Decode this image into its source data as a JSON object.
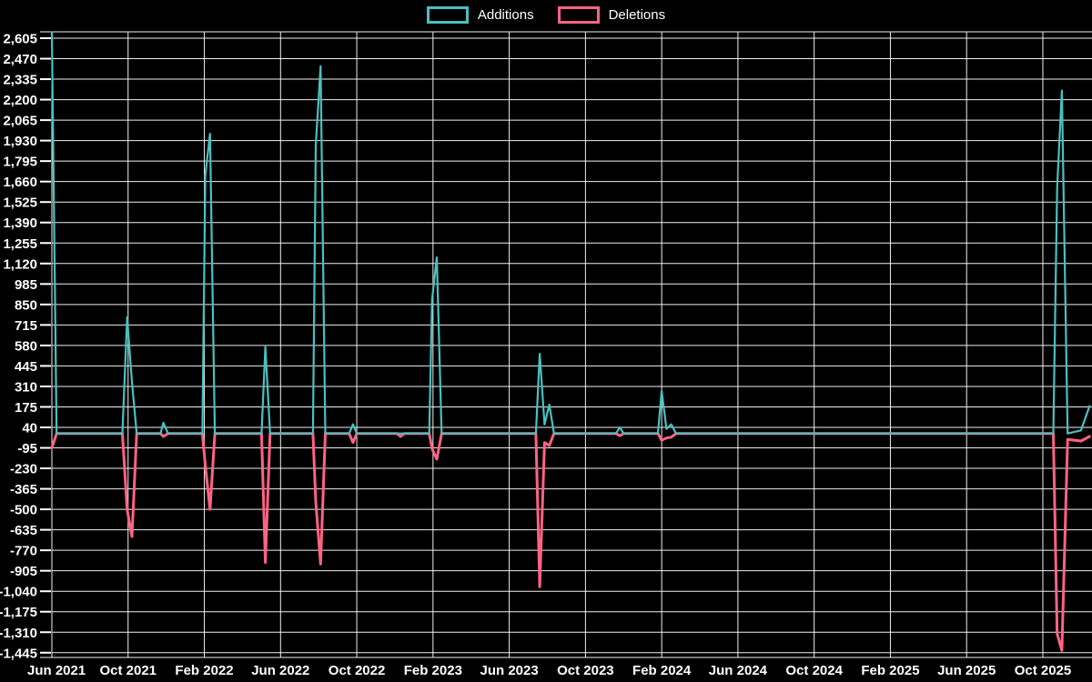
{
  "legend": [
    {
      "label": "Additions",
      "color": "#4bc0c0"
    },
    {
      "label": "Deletions",
      "color": "#ff6384"
    }
  ],
  "colors": {
    "background": "#000000",
    "grid": "#efefef",
    "text": "#ffffff",
    "additions": "#4bc0c0",
    "deletions": "#ff6384"
  },
  "chart_data": {
    "type": "line",
    "title": "",
    "xlabel": "",
    "ylabel": "",
    "legend_position": "top",
    "grid": true,
    "background": "#000000",
    "ylim": [
      -1445,
      2605
    ],
    "y_tick_step": 135,
    "y_tick_labels": [
      "2,605",
      "2,470",
      "2,335",
      "2,200",
      "2,065",
      "1,930",
      "1,795",
      "1,660",
      "1,525",
      "1,390",
      "1,255",
      "1,120",
      "985",
      "850",
      "715",
      "580",
      "445",
      "310",
      "175",
      "40",
      "-95",
      "-230",
      "-365",
      "-500",
      "-635",
      "-770",
      "-905",
      "-1,040",
      "-1,175",
      "-1,310",
      "-1,445"
    ],
    "x_tick_labels": [
      "Jun 2021",
      "Oct 2021",
      "Feb 2022",
      "Jun 2022",
      "Oct 2022",
      "Feb 2023",
      "Jun 2023",
      "Oct 2023",
      "Feb 2024",
      "Jun 2024",
      "Oct 2024",
      "Feb 2025",
      "Jun 2025",
      "Oct 2025"
    ],
    "x_unit": "months_since_Jun_2021",
    "x": [
      0,
      0.25,
      3.7,
      3.95,
      4.2,
      4.45,
      5.7,
      5.85,
      6.1,
      7.9,
      8.05,
      8.3,
      8.55,
      11.0,
      11.2,
      11.45,
      13.7,
      13.85,
      14.1,
      14.35,
      15.6,
      15.8,
      16.0,
      18.1,
      18.3,
      18.5,
      19.8,
      19.95,
      20.2,
      20.45,
      25.4,
      25.6,
      25.85,
      26.1,
      26.35,
      29.6,
      29.8,
      30.0,
      31.8,
      32.0,
      32.25,
      32.5,
      32.75,
      52.55,
      52.75,
      53.0,
      53.3,
      54.0,
      54.45
    ],
    "series": [
      {
        "name": "Additions",
        "color": "#4bc0c0",
        "values": [
          2645,
          0,
          0,
          765,
          340,
          0,
          0,
          70,
          0,
          0,
          1700,
          1975,
          0,
          0,
          570,
          0,
          0,
          1900,
          2420,
          0,
          0,
          60,
          0,
          0,
          0,
          0,
          0,
          880,
          1160,
          0,
          0,
          525,
          60,
          190,
          0,
          0,
          40,
          0,
          0,
          280,
          30,
          60,
          0,
          0,
          1620,
          2260,
          0,
          20,
          180
        ]
      },
      {
        "name": "Deletions",
        "color": "#ff6384",
        "values": [
          -95,
          0,
          0,
          -500,
          -680,
          0,
          0,
          -20,
          0,
          0,
          -210,
          -500,
          0,
          0,
          -850,
          0,
          0,
          -450,
          -860,
          0,
          0,
          -60,
          0,
          0,
          -20,
          0,
          0,
          -100,
          -170,
          0,
          0,
          -1010,
          -60,
          -80,
          0,
          0,
          -15,
          0,
          0,
          -45,
          -30,
          -25,
          0,
          0,
          -1320,
          -1430,
          -40,
          -50,
          -20
        ]
      }
    ]
  }
}
